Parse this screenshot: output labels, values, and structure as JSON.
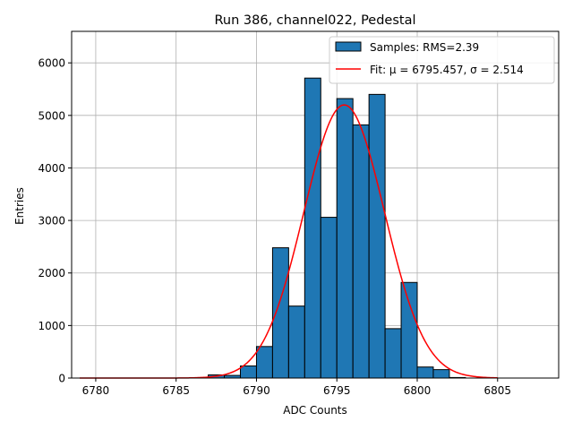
{
  "chart_data": {
    "type": "bar",
    "title": "Run 386, channel022, Pedestal",
    "xlabel": "ADC Counts",
    "ylabel": "Entries",
    "xlim": [
      6778.5,
      6808.8
    ],
    "ylim": [
      0,
      6600
    ],
    "grid": true,
    "legend_position": "top-right",
    "xticks": [
      6780,
      6785,
      6790,
      6795,
      6800,
      6805
    ],
    "yticks": [
      0,
      1000,
      2000,
      3000,
      4000,
      5000,
      6000
    ],
    "histogram": {
      "name": "Samples: RMS=2.39",
      "color": "#1f77b4",
      "edges": [
        6787,
        6788,
        6789,
        6790,
        6791,
        6792,
        6793,
        6794,
        6795,
        6796,
        6797,
        6798,
        6799,
        6800,
        6801,
        6802,
        6803
      ],
      "counts": [
        60,
        50,
        230,
        600,
        2480,
        1370,
        5710,
        3060,
        5320,
        4820,
        5400,
        940,
        1820,
        210,
        160,
        10
      ]
    },
    "fit": {
      "name": "Fit: μ = 6795.457, σ = 2.514",
      "color": "#ff0000",
      "mu": 6795.457,
      "sigma": 2.514,
      "amplitude": 5200,
      "x_range": [
        6779,
        6805
      ]
    }
  }
}
